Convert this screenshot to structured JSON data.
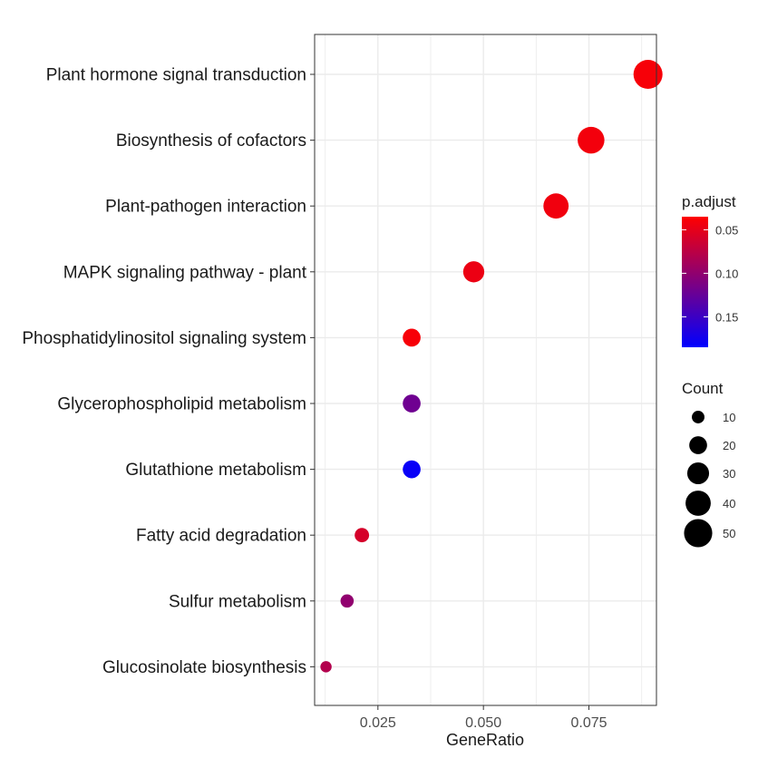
{
  "chart_data": {
    "type": "scatter",
    "xlabel": "GeneRatio",
    "ylabel": "",
    "xlim": [
      0.01,
      0.091
    ],
    "xticks": [
      0.025,
      0.05,
      0.075
    ],
    "xtick_labels": [
      "0.025",
      "0.050",
      "0.075"
    ],
    "grid": true,
    "categories": [
      "Plant hormone signal transduction",
      "Biosynthesis of cofactors",
      "Plant-pathogen interaction",
      "MAPK signaling pathway - plant",
      "Phosphatidylinositol signaling system",
      "Glycerophospholipid metabolism",
      "Glutathione metabolism",
      "Fatty acid degradation",
      "Sulfur metabolism",
      "Glucosinolate biosynthesis"
    ],
    "points": [
      {
        "category": "Plant hormone signal transduction",
        "gene_ratio": 0.089,
        "count": 53,
        "p_adjust": 0.04
      },
      {
        "category": "Biosynthesis of cofactors",
        "gene_ratio": 0.0755,
        "count": 45,
        "p_adjust": 0.042
      },
      {
        "category": "Plant-pathogen interaction",
        "gene_ratio": 0.0672,
        "count": 40,
        "p_adjust": 0.043
      },
      {
        "category": "MAPK signaling pathway - plant",
        "gene_ratio": 0.0477,
        "count": 28,
        "p_adjust": 0.046
      },
      {
        "category": "Phosphatidylinositol signaling system",
        "gene_ratio": 0.033,
        "count": 20,
        "p_adjust": 0.04
      },
      {
        "category": "Glycerophospholipid metabolism",
        "gene_ratio": 0.033,
        "count": 20,
        "p_adjust": 0.12
      },
      {
        "category": "Glutathione metabolism",
        "gene_ratio": 0.033,
        "count": 20,
        "p_adjust": 0.18
      },
      {
        "category": "Fatty acid degradation",
        "gene_ratio": 0.0212,
        "count": 13,
        "p_adjust": 0.06
      },
      {
        "category": "Sulfur metabolism",
        "gene_ratio": 0.0177,
        "count": 11,
        "p_adjust": 0.1
      },
      {
        "category": "Glucosinolate biosynthesis",
        "gene_ratio": 0.0127,
        "count": 8,
        "p_adjust": 0.08
      }
    ],
    "color_legend": {
      "title": "p.adjust",
      "range": [
        0.035,
        0.185
      ],
      "ticks": [
        0.05,
        0.1,
        0.15
      ],
      "tick_labels": [
        "0.05",
        "0.10",
        "0.15"
      ],
      "low_color": "#ff0000",
      "high_color": "#0000ff"
    },
    "size_legend": {
      "title": "Count",
      "values": [
        10,
        20,
        30,
        40,
        50
      ],
      "labels": [
        "10",
        "20",
        "30",
        "40",
        "50"
      ]
    },
    "legend_position": "right"
  }
}
